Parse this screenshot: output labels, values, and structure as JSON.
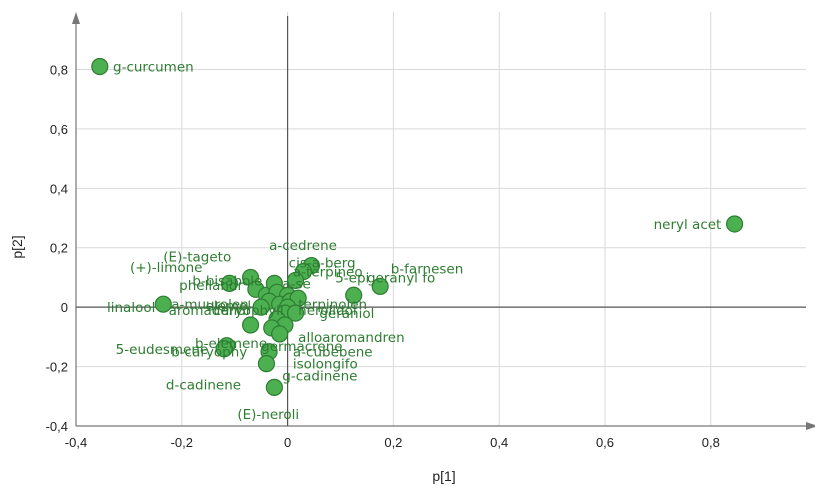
{
  "chart_data": {
    "type": "scatter",
    "xlabel": "p[1]",
    "ylabel": "p[2]",
    "xlim": [
      -0.4,
      0.98
    ],
    "ylim": [
      -0.4,
      0.98
    ],
    "xticks": [
      "-0,4",
      "-0,2",
      "0",
      "0,2",
      "0,4",
      "0,6",
      "0,8"
    ],
    "yticks": [
      "-0,4",
      "-0,2",
      "0",
      "0,2",
      "0,4",
      "0,6",
      "0,8"
    ],
    "grid": true,
    "colors": {
      "point_fill": "#4caf50",
      "point_stroke": "#2e7d32",
      "label": "#2e7d32",
      "grid": "#d9d9d9",
      "axis": "#777777"
    },
    "points": [
      {
        "x": -0.355,
        "y": 0.81,
        "label": "g-curcumen"
      },
      {
        "x": 0.845,
        "y": 0.28,
        "label": "neryl acet"
      },
      {
        "x": -0.235,
        "y": 0.01,
        "label": "linalool"
      },
      {
        "x": 0.175,
        "y": 0.07,
        "label": "b-farnesen"
      },
      {
        "x": 0.125,
        "y": 0.04,
        "label": "geranyl fo"
      },
      {
        "x": 0.045,
        "y": 0.14,
        "label": "cis-a-berg"
      },
      {
        "x": 0.03,
        "y": 0.12,
        "label": "a-terpineo"
      },
      {
        "x": 0.015,
        "y": 0.09,
        "label": "a-cedrene"
      },
      {
        "x": -0.07,
        "y": 0.1,
        "label": "(E)-tageto"
      },
      {
        "x": -0.11,
        "y": 0.08,
        "label": "(+)-limone"
      },
      {
        "x": -0.06,
        "y": 0.06,
        "label": "b-bisabole"
      },
      {
        "x": -0.04,
        "y": 0.04,
        "label": "phellandre"
      },
      {
        "x": -0.025,
        "y": 0.08,
        "label": "a-sel"
      },
      {
        "x": -0.02,
        "y": 0.05,
        "label": "epi"
      },
      {
        "x": 0.0,
        "y": 0.04,
        "label": "5-epi"
      },
      {
        "x": -0.035,
        "y": 0.02,
        "label": ""
      },
      {
        "x": -0.015,
        "y": 0.01,
        "label": "a-muurolen"
      },
      {
        "x": 0.005,
        "y": 0.02,
        "label": "elemol"
      },
      {
        "x": 0.02,
        "y": 0.03,
        "label": ""
      },
      {
        "x": -0.05,
        "y": 0.0,
        "label": "aromadendr"
      },
      {
        "x": 0.0,
        "y": 0.0,
        "label": "nerolidol"
      },
      {
        "x": -0.005,
        "y": -0.02,
        "label": "terpinolen"
      },
      {
        "x": 0.015,
        "y": -0.02,
        "label": "geraniol"
      },
      {
        "x": -0.02,
        "y": -0.04,
        "label": "caryophyll"
      },
      {
        "x": -0.07,
        "y": -0.06,
        "label": "b-elemene"
      },
      {
        "x": -0.005,
        "y": -0.06,
        "label": "alloaromandren"
      },
      {
        "x": -0.03,
        "y": -0.07,
        "label": "a-cubebene"
      },
      {
        "x": -0.015,
        "y": -0.09,
        "label": "germacrene"
      },
      {
        "x": -0.115,
        "y": -0.13,
        "label": "5-eudesmene"
      },
      {
        "x": -0.12,
        "y": -0.14,
        "label": "b-caryophy"
      },
      {
        "x": -0.035,
        "y": -0.15,
        "label": "isolongifo"
      },
      {
        "x": -0.04,
        "y": -0.19,
        "label": "g-cadinene"
      },
      {
        "x": -0.025,
        "y": -0.27,
        "label": "d-cadinene"
      }
    ],
    "labels_drawn": [
      {
        "text": "g-curcumen",
        "x": -0.33,
        "y": 0.81
      },
      {
        "text": "neryl acet",
        "x": 0.82,
        "y": 0.28,
        "anchor": "end"
      },
      {
        "text": "linalool",
        "x": -0.25,
        "y": 0.0,
        "anchor": "end"
      },
      {
        "text": "a-cedrene",
        "x": -0.035,
        "y": 0.21
      },
      {
        "text": "(E)-tageto",
        "x": -0.235,
        "y": 0.17
      },
      {
        "text": "(+)-limone",
        "x": -0.298,
        "y": 0.135
      },
      {
        "text": "cis-a-berg",
        "x": 0.002,
        "y": 0.15
      },
      {
        "text": "b-farnesen",
        "x": 0.195,
        "y": 0.13
      },
      {
        "text": "a-terpineo",
        "x": 0.01,
        "y": 0.12
      },
      {
        "text": "5-epi",
        "x": 0.09,
        "y": 0.1
      },
      {
        "text": "geranyl fo",
        "x": 0.15,
        "y": 0.1
      },
      {
        "text": "b-bisabole",
        "x": -0.18,
        "y": 0.09
      },
      {
        "text": "a-se",
        "x": -0.01,
        "y": 0.08
      },
      {
        "text": "phellandr",
        "x": -0.205,
        "y": 0.075
      },
      {
        "text": "a-muurolen",
        "x": -0.22,
        "y": 0.01
      },
      {
        "text": "elemol",
        "x": -0.155,
        "y": 0.005
      },
      {
        "text": "aromadendr",
        "x": -0.225,
        "y": -0.01
      },
      {
        "text": "caryophyll",
        "x": -0.14,
        "y": -0.01
      },
      {
        "text": "terpinolen",
        "x": 0.02,
        "y": 0.01
      },
      {
        "text": "nerolidol",
        "x": 0.02,
        "y": -0.01
      },
      {
        "text": "geraniol",
        "x": 0.06,
        "y": -0.02
      },
      {
        "text": "alloaromandren",
        "x": 0.02,
        "y": -0.1
      },
      {
        "text": "b-elemene",
        "x": -0.175,
        "y": -0.12
      },
      {
        "text": "germacrene",
        "x": -0.05,
        "y": -0.13
      },
      {
        "text": "a-cubebene",
        "x": 0.01,
        "y": -0.15
      },
      {
        "text": "5-eudesmene",
        "x": -0.325,
        "y": -0.14
      },
      {
        "text": "b-caryophy",
        "x": -0.22,
        "y": -0.15
      },
      {
        "text": "isolongifo",
        "x": 0.01,
        "y": -0.19
      },
      {
        "text": "g-cadinene",
        "x": -0.01,
        "y": -0.23
      },
      {
        "text": "d-cadinene",
        "x": -0.23,
        "y": -0.26
      },
      {
        "text": "(E)-neroli",
        "x": -0.095,
        "y": -0.36
      }
    ]
  }
}
